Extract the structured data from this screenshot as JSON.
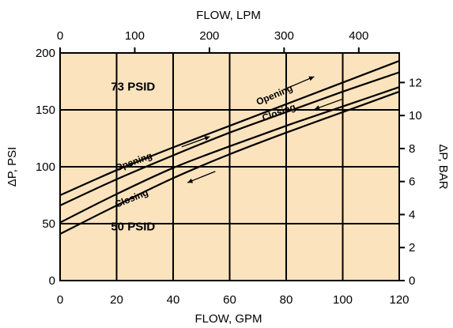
{
  "chart_data": {
    "type": "line",
    "background_color": "#fbe3bd",
    "line_color": "#000000",
    "grid": true,
    "x_bottom": {
      "label": "FLOW, GPM",
      "range": [
        0,
        120
      ],
      "ticks": [
        "0",
        "20",
        "40",
        "60",
        "80",
        "100",
        "120"
      ]
    },
    "x_top": {
      "label": "FLOW, LPM",
      "range": [
        0,
        454.2
      ],
      "ticks": [
        "0",
        "100",
        "200",
        "300",
        "400"
      ]
    },
    "y_left": {
      "label": "ΔP, PSI",
      "range": [
        0,
        200
      ],
      "ticks": [
        "0",
        "50",
        "100",
        "150",
        "200"
      ]
    },
    "y_right": {
      "label": "ΔP, BAR",
      "range": [
        0,
        13.79
      ],
      "ticks": [
        "0",
        "2",
        "4",
        "6",
        "8",
        "10",
        "12"
      ]
    },
    "series": [
      {
        "name": "",
        "group": "73 PSID",
        "direction": "Opening",
        "x": [
          0,
          20,
          40,
          60,
          80,
          100,
          120
        ],
        "y": [
          75,
          97,
          117,
          136,
          155,
          174,
          193
        ]
      },
      {
        "name": "",
        "group": "73 PSID",
        "direction": "Closing",
        "x": [
          0,
          20,
          40,
          60,
          80,
          100,
          120
        ],
        "y": [
          66,
          89,
          110,
          130,
          148,
          166,
          183
        ]
      },
      {
        "name": "",
        "group": "50 PSID",
        "direction": "Opening",
        "x": [
          0,
          20,
          40,
          60,
          80,
          100,
          120
        ],
        "y": [
          51,
          76,
          99,
          118,
          136,
          153,
          170
        ]
      },
      {
        "name": "",
        "group": "50 PSID",
        "direction": "Closing",
        "x": [
          0,
          20,
          40,
          60,
          80,
          100,
          120
        ],
        "y": [
          41,
          66,
          90,
          111,
          130,
          148,
          166
        ]
      }
    ],
    "annotations": [
      {
        "text": "73 PSID",
        "x": 18,
        "y": 167
      },
      {
        "text": "50 PSID",
        "x": 18,
        "y": 44
      },
      {
        "text": "Opening",
        "x": 70,
        "y": 154,
        "angle": -23,
        "arrow": "right",
        "arrow_at": [
          85,
          174
        ]
      },
      {
        "text": "Closing",
        "x": 72,
        "y": 140,
        "angle": -20,
        "arrow": "left",
        "arrow_at": [
          95,
          155
        ]
      },
      {
        "text": "Opening",
        "x": 20,
        "y": 96,
        "angle": -20,
        "arrow": "right",
        "arrow_at": [
          48,
          122
        ]
      },
      {
        "text": "Closing",
        "x": 20,
        "y": 64,
        "angle": -22,
        "arrow": "left",
        "arrow_at": [
          50,
          91
        ]
      }
    ]
  }
}
